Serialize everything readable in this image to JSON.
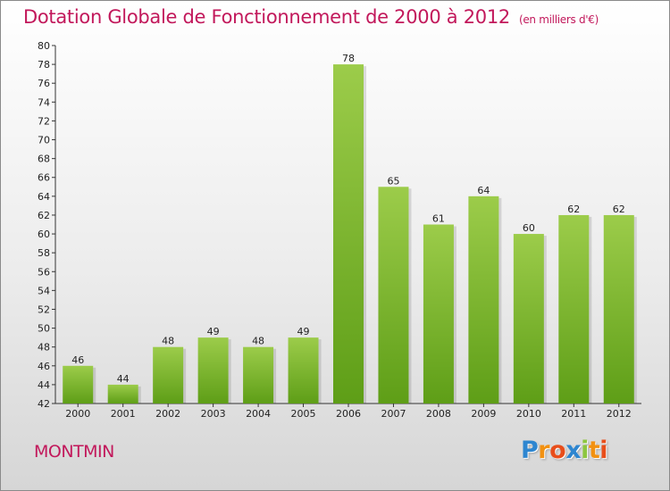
{
  "chart_data": {
    "type": "bar",
    "title": "Dotation Globale de Fonctionnement de 2000 à 2012",
    "subtitle": "(en milliers d'€)",
    "categories": [
      "2000",
      "2001",
      "2002",
      "2003",
      "2004",
      "2005",
      "2006",
      "2007",
      "2008",
      "2009",
      "2010",
      "2011",
      "2012"
    ],
    "values": [
      46,
      44,
      48,
      49,
      48,
      49,
      78,
      65,
      61,
      64,
      60,
      62,
      62
    ],
    "ylim": [
      42,
      80
    ],
    "ytick_step": 2,
    "grid": false,
    "colors": {
      "bar_top": "#9ccc4a",
      "bar_bottom": "#5e9e17"
    }
  },
  "footer": {
    "town": "MONTMIN",
    "logo_letters": [
      {
        "ch": "P",
        "color": "#2e86d0"
      },
      {
        "ch": "r",
        "color": "#f29111"
      },
      {
        "ch": "o",
        "color": "#e84e1b"
      },
      {
        "ch": "x",
        "color": "#2e86d0"
      },
      {
        "ch": "i",
        "color": "#8dc63f"
      },
      {
        "ch": "t",
        "color": "#f29111"
      },
      {
        "ch": "i",
        "color": "#e84e1b"
      }
    ]
  }
}
